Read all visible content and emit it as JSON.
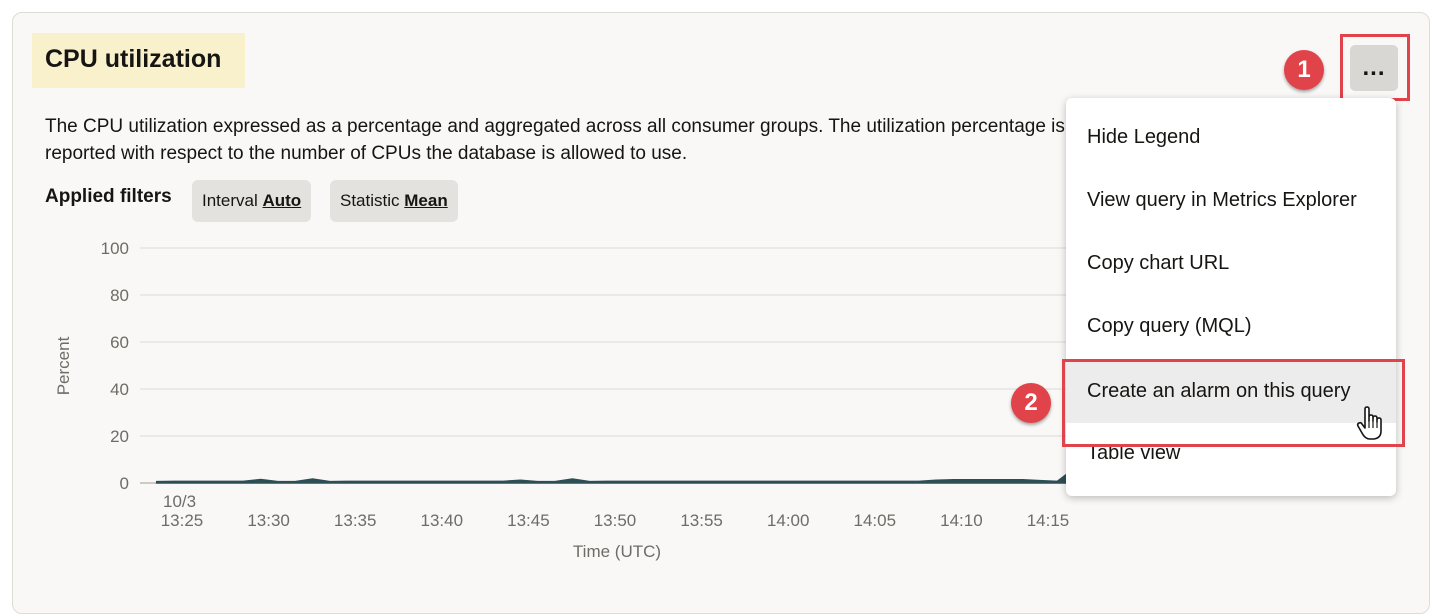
{
  "widget": {
    "title": "CPU utilization",
    "description": "The CPU utilization expressed as a percentage and aggregated across all consumer groups. The utilization percentage is reported with respect to the number of CPUs the database is allowed to use.",
    "filters_label": "Applied filters",
    "filters": [
      {
        "name": "Interval",
        "value": "Auto"
      },
      {
        "name": "Statistic",
        "value": "Mean"
      }
    ],
    "more_button_label": "..."
  },
  "menu": {
    "items": [
      {
        "label": "Hide Legend"
      },
      {
        "label": "View query in Metrics Explorer"
      },
      {
        "label": "Copy chart URL"
      },
      {
        "label": "Copy query (MQL)"
      },
      {
        "label": "Create an alarm on this query"
      },
      {
        "label": "Table view"
      }
    ]
  },
  "annotations": {
    "step1": "1",
    "step2": "2",
    "color": "#e0434a"
  },
  "chart_data": {
    "type": "area",
    "ylabel": "Percent",
    "xlabel": "Time (UTC)",
    "ylim": [
      0,
      100
    ],
    "yticks": [
      0,
      20,
      40,
      60,
      80,
      100
    ],
    "date_label": "10/3",
    "xticks": [
      "13:25",
      "13:30",
      "13:35",
      "13:40",
      "13:45",
      "13:50",
      "13:55",
      "14:00",
      "14:05",
      "14:10",
      "14:15"
    ],
    "x": [
      "13:24",
      "13:25",
      "13:26",
      "13:27",
      "13:28",
      "13:29",
      "13:30",
      "13:31",
      "13:32",
      "13:33",
      "13:34",
      "13:35",
      "13:36",
      "13:37",
      "13:38",
      "13:39",
      "13:40",
      "13:41",
      "13:42",
      "13:43",
      "13:44",
      "13:45",
      "13:46",
      "13:47",
      "13:48",
      "13:49",
      "13:50",
      "13:51",
      "13:52",
      "13:53",
      "13:54",
      "13:55",
      "13:56",
      "13:57",
      "13:58",
      "13:59",
      "14:00",
      "14:01",
      "14:02",
      "14:03",
      "14:04",
      "14:05",
      "14:06",
      "14:07",
      "14:08",
      "14:09",
      "14:10",
      "14:11",
      "14:12",
      "14:13",
      "14:14",
      "14:15",
      "14:16",
      "14:17"
    ],
    "values": [
      0.6,
      0.7,
      0.7,
      0.7,
      0.7,
      0.7,
      1.5,
      0.6,
      0.6,
      1.7,
      0.6,
      0.7,
      0.7,
      0.7,
      0.7,
      0.7,
      0.7,
      0.7,
      0.7,
      0.7,
      0.7,
      1.2,
      0.6,
      0.6,
      1.7,
      0.6,
      0.7,
      0.7,
      0.7,
      0.7,
      0.7,
      0.7,
      0.7,
      0.7,
      0.7,
      0.7,
      0.7,
      0.7,
      0.7,
      0.7,
      0.7,
      0.7,
      0.7,
      0.7,
      0.7,
      1.2,
      1.4,
      1.4,
      1.4,
      1.4,
      1.4,
      1.0,
      0.7,
      3.5
    ],
    "grid": true,
    "colors": {
      "series": "#2d4e55",
      "grid": "#dcdad6"
    }
  }
}
